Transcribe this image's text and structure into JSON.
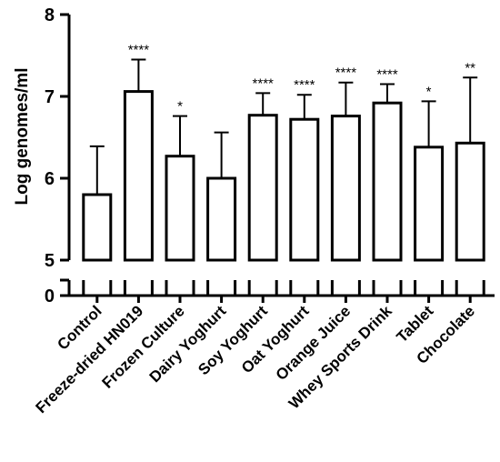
{
  "chart_data": {
    "type": "bar",
    "title": "",
    "xlabel": "",
    "ylabel": "Log genomes/ml",
    "ylim": [
      5,
      8
    ],
    "y_ticks": [
      "5",
      "6",
      "7",
      "8"
    ],
    "y_axis_break": {
      "lower_tick": "0"
    },
    "categories": [
      "Control",
      "Freeze-dried HN019",
      "Frozen Culture",
      "Dairy Yoghurt",
      "Soy Yoghurt",
      "Oat Yoghurt",
      "Orange Juice",
      "Whey Sports Drink",
      "Tablet",
      "Chocolate"
    ],
    "values": [
      5.8,
      7.06,
      6.27,
      6.0,
      6.77,
      6.72,
      6.76,
      6.92,
      6.38,
      6.43
    ],
    "error_upper": [
      6.39,
      7.45,
      6.76,
      6.56,
      7.04,
      7.02,
      7.17,
      7.15,
      6.94,
      7.23
    ],
    "significance": [
      "",
      "****",
      "*",
      "",
      "****",
      "****",
      "****",
      "****",
      "*",
      "**"
    ],
    "grid": false,
    "legend": "none",
    "colors": {
      "bar_fill": "#ffffff",
      "stroke": "#000000"
    }
  }
}
